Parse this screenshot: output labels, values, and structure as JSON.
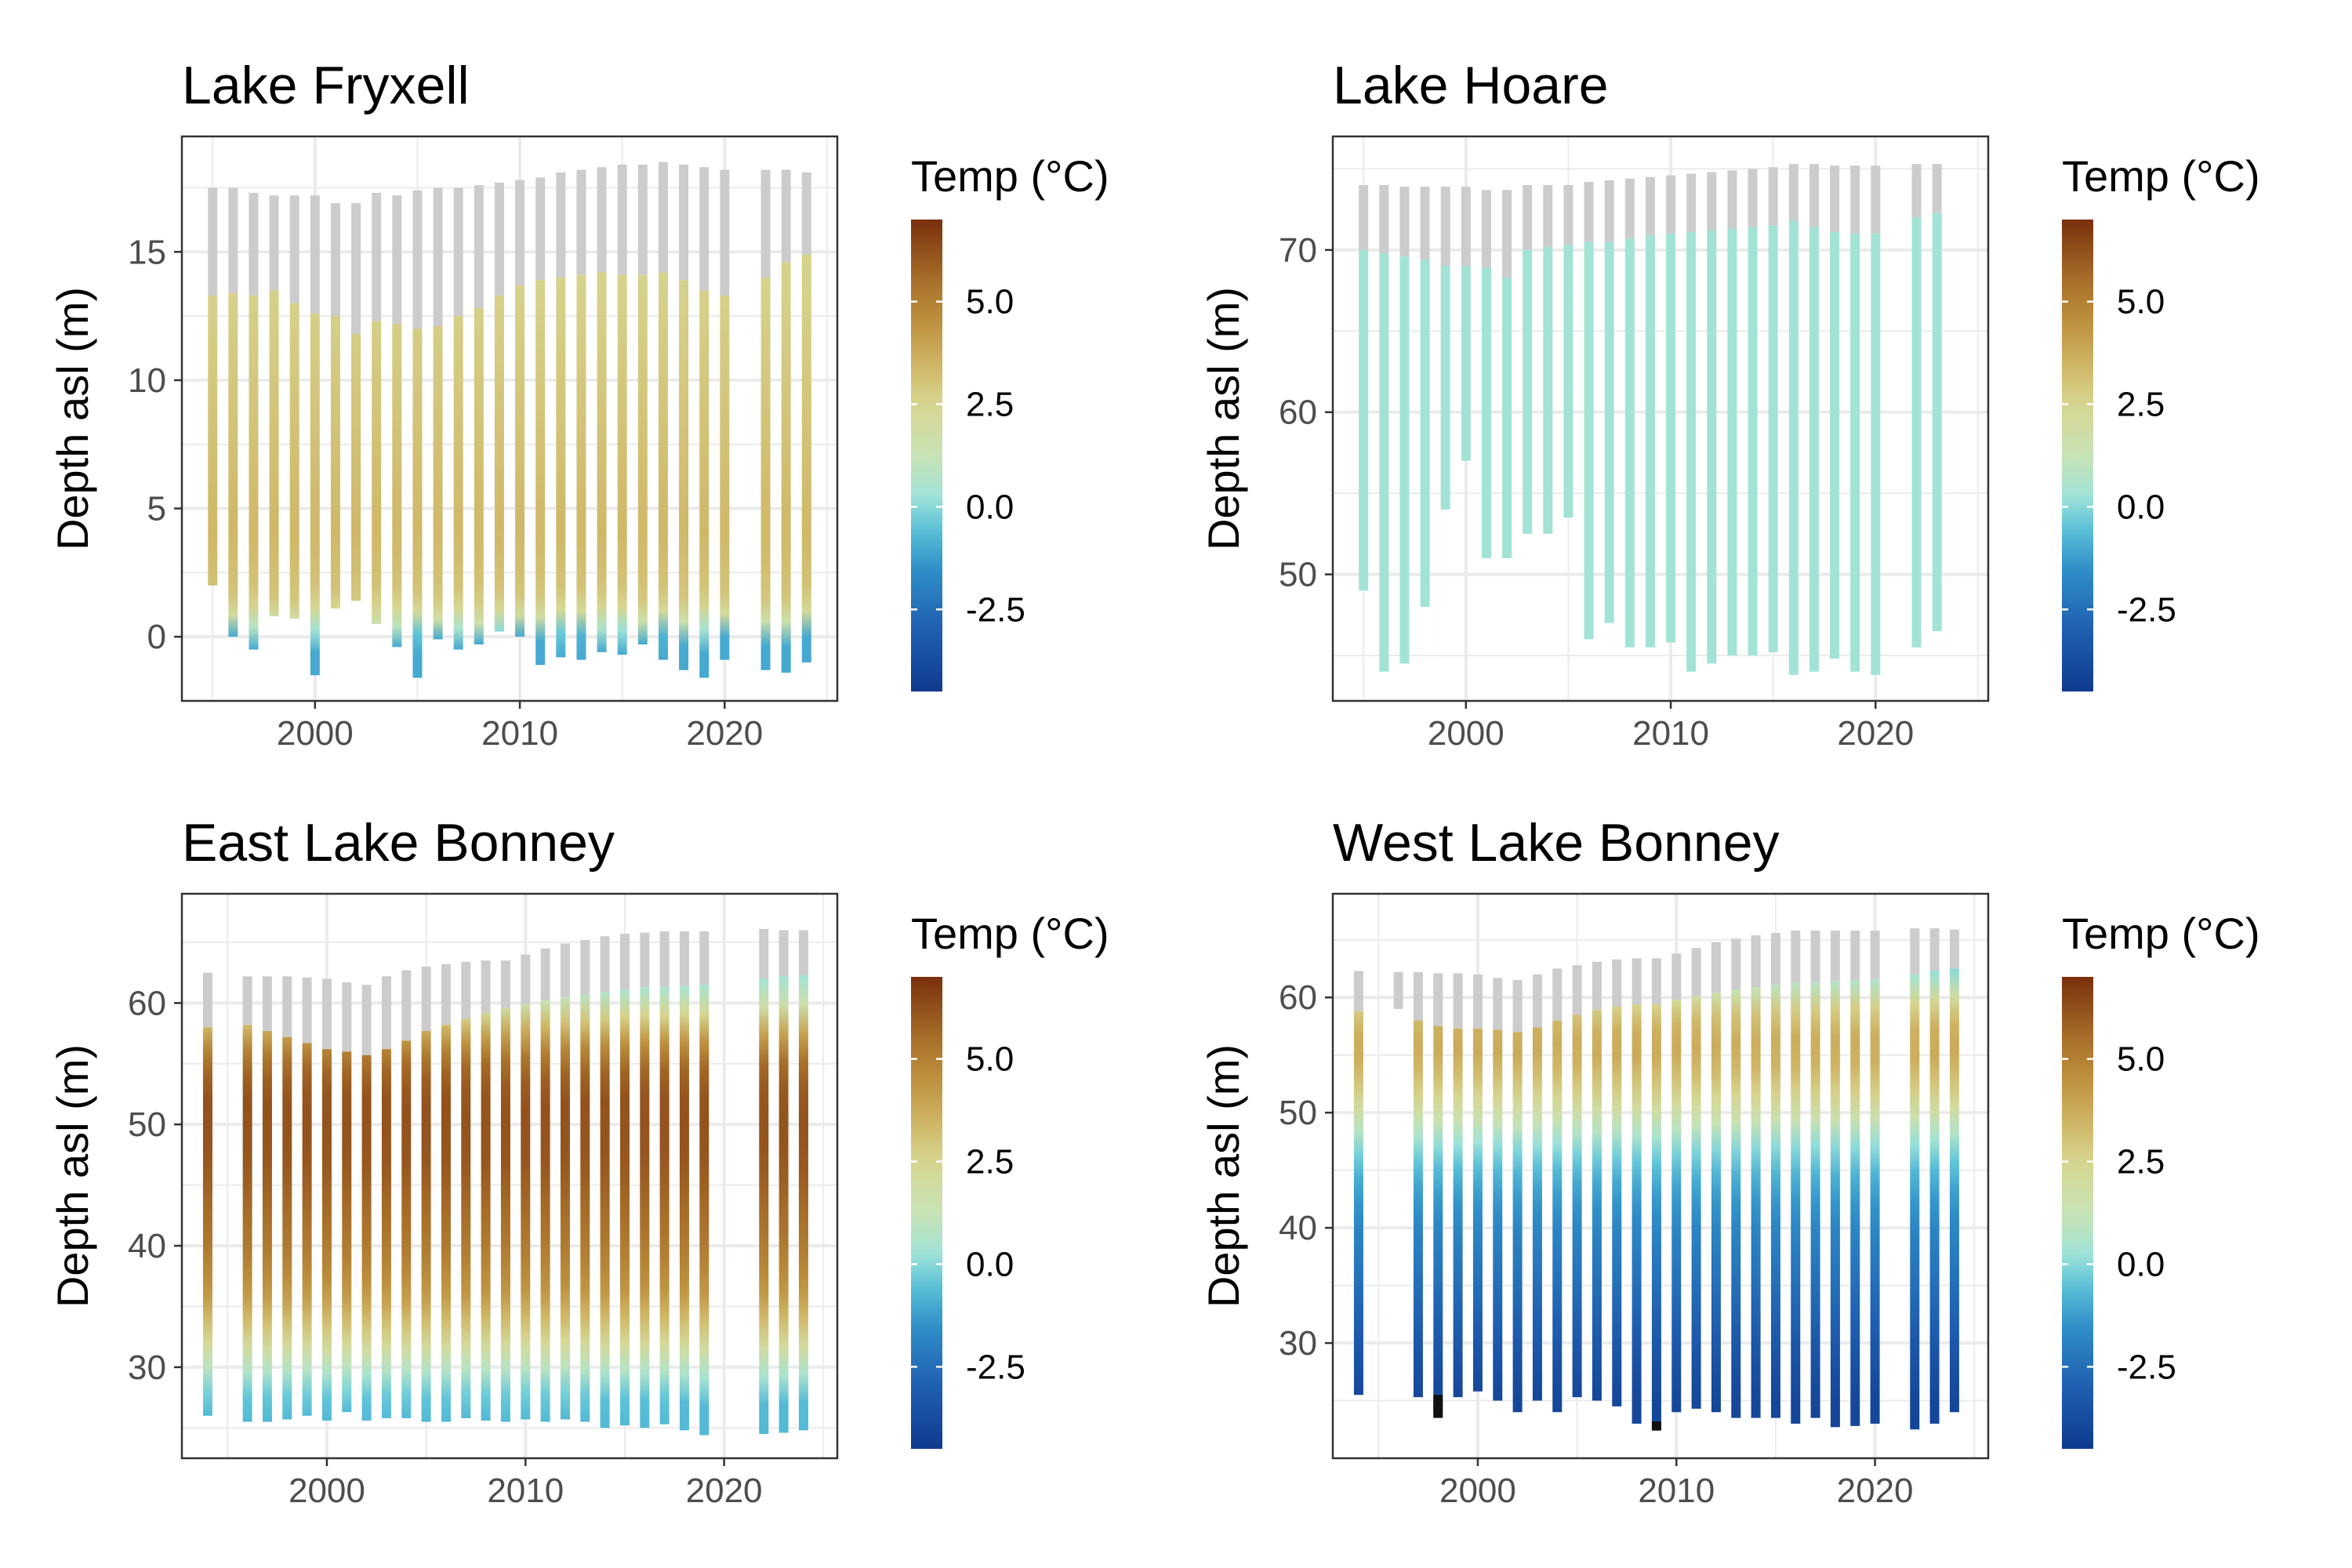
{
  "figure": {
    "legend_title": "Temp (°C)",
    "ylabel": "Depth asl (m)",
    "colorbar": {
      "min": -4.5,
      "max": 7,
      "ticks": [
        5.0,
        2.5,
        0.0,
        -2.5
      ],
      "tick_labels": [
        "5.0",
        "2.5",
        "0.0",
        "-2.5"
      ],
      "stops": [
        {
          "t": -4.5,
          "color": "#0f3a8e"
        },
        {
          "t": -3.0,
          "color": "#1f5fb0"
        },
        {
          "t": -1.5,
          "color": "#2f8fc8"
        },
        {
          "t": -0.5,
          "color": "#5cc3d8"
        },
        {
          "t": 0.2,
          "color": "#9ee3da"
        },
        {
          "t": 1.2,
          "color": "#c7e3b6"
        },
        {
          "t": 2.5,
          "color": "#d7d691"
        },
        {
          "t": 3.5,
          "color": "#cfb463"
        },
        {
          "t": 4.5,
          "color": "#bd913e"
        },
        {
          "t": 5.5,
          "color": "#a8702a"
        },
        {
          "t": 7.0,
          "color": "#7a2f0c"
        }
      ],
      "ice_color": "#cccccc",
      "below_range_color": "#111111"
    }
  },
  "chart_data": [
    {
      "type": "heatmap",
      "title": "Lake Fryxell",
      "xlim": [
        1993.5,
        2025.5
      ],
      "ylim": [
        -2.5,
        19.5
      ],
      "xticks": [
        2000,
        2010,
        2020
      ],
      "yticks": [
        0,
        5,
        10,
        15
      ],
      "series": [
        {
          "year": 1995,
          "top": 17.5,
          "ice_bottom": 13.3,
          "bottom": 2.0
        },
        {
          "year": 1996,
          "top": 17.5,
          "ice_bottom": 13.4,
          "bottom": 0.0
        },
        {
          "year": 1997,
          "top": 17.3,
          "ice_bottom": 13.3,
          "bottom": -0.5
        },
        {
          "year": 1998,
          "top": 17.2,
          "ice_bottom": 13.5,
          "bottom": 0.8
        },
        {
          "year": 1999,
          "top": 17.2,
          "ice_bottom": 13.0,
          "bottom": 0.7
        },
        {
          "year": 2000,
          "top": 17.2,
          "ice_bottom": 12.6,
          "bottom": -1.5
        },
        {
          "year": 2001,
          "top": 16.9,
          "ice_bottom": 12.5,
          "bottom": 1.1
        },
        {
          "year": 2002,
          "top": 16.9,
          "ice_bottom": 11.8,
          "bottom": 1.4
        },
        {
          "year": 2003,
          "top": 17.3,
          "ice_bottom": 12.3,
          "bottom": 0.5
        },
        {
          "year": 2004,
          "top": 17.2,
          "ice_bottom": 12.2,
          "bottom": -0.4
        },
        {
          "year": 2005,
          "top": 17.4,
          "ice_bottom": 12.0,
          "bottom": -1.6
        },
        {
          "year": 2006,
          "top": 17.5,
          "ice_bottom": 12.1,
          "bottom": -0.1
        },
        {
          "year": 2007,
          "top": 17.5,
          "ice_bottom": 12.5,
          "bottom": -0.5
        },
        {
          "year": 2008,
          "top": 17.6,
          "ice_bottom": 12.8,
          "bottom": -0.3
        },
        {
          "year": 2009,
          "top": 17.7,
          "ice_bottom": 13.3,
          "bottom": 0.2
        },
        {
          "year": 2010,
          "top": 17.8,
          "ice_bottom": 13.7,
          "bottom": 0.0
        },
        {
          "year": 2011,
          "top": 17.9,
          "ice_bottom": 13.9,
          "bottom": -1.1
        },
        {
          "year": 2012,
          "top": 18.1,
          "ice_bottom": 14.0,
          "bottom": -0.8
        },
        {
          "year": 2013,
          "top": 18.2,
          "ice_bottom": 14.1,
          "bottom": -0.9
        },
        {
          "year": 2014,
          "top": 18.3,
          "ice_bottom": 14.2,
          "bottom": -0.6
        },
        {
          "year": 2015,
          "top": 18.4,
          "ice_bottom": 14.1,
          "bottom": -0.7
        },
        {
          "year": 2016,
          "top": 18.4,
          "ice_bottom": 14.1,
          "bottom": -0.3
        },
        {
          "year": 2017,
          "top": 18.5,
          "ice_bottom": 14.2,
          "bottom": -0.9
        },
        {
          "year": 2018,
          "top": 18.4,
          "ice_bottom": 13.9,
          "bottom": -1.3
        },
        {
          "year": 2019,
          "top": 18.3,
          "ice_bottom": 13.5,
          "bottom": -1.6
        },
        {
          "year": 2020,
          "top": 18.2,
          "ice_bottom": 13.3,
          "bottom": -0.9
        },
        {
          "year": 2022,
          "top": 18.2,
          "ice_bottom": 14.0,
          "bottom": -1.3
        },
        {
          "year": 2023,
          "top": 18.2,
          "ice_bottom": 14.6,
          "bottom": -1.4
        },
        {
          "year": 2024,
          "top": 18.1,
          "ice_bottom": 14.9,
          "bottom": -1.0
        }
      ],
      "profile": [
        {
          "d": 0.0,
          "t": -1.0
        },
        {
          "d": 0.5,
          "t": 1.5
        },
        {
          "d": 1.5,
          "t": 3.0
        },
        {
          "d": 4.0,
          "t": 3.4
        },
        {
          "d": 14.0,
          "t": 2.6
        },
        {
          "d": 100.0,
          "t": 2.6
        }
      ]
    },
    {
      "type": "heatmap",
      "title": "Lake Hoare",
      "xlim": [
        1993.5,
        2025.5
      ],
      "ylim": [
        42.2,
        77.0
      ],
      "xticks": [
        2000,
        2010,
        2020
      ],
      "yticks": [
        50,
        60,
        70
      ],
      "series": [
        {
          "year": 1995,
          "top": 74.0,
          "ice_bottom": 70.0,
          "bottom": 49.0
        },
        {
          "year": 1996,
          "top": 74.0,
          "ice_bottom": 69.8,
          "bottom": 44.0
        },
        {
          "year": 1997,
          "top": 73.9,
          "ice_bottom": 69.6,
          "bottom": 44.5
        },
        {
          "year": 1998,
          "top": 73.9,
          "ice_bottom": 69.4,
          "bottom": 48.0
        },
        {
          "year": 1999,
          "top": 73.9,
          "ice_bottom": 69.0,
          "bottom": 54.0
        },
        {
          "year": 2000,
          "top": 73.9,
          "ice_bottom": 69.0,
          "bottom": 57.0
        },
        {
          "year": 2001,
          "top": 73.7,
          "ice_bottom": 68.9,
          "bottom": 51.0
        },
        {
          "year": 2002,
          "top": 73.7,
          "ice_bottom": 68.3,
          "bottom": 51.0
        },
        {
          "year": 2003,
          "top": 74.0,
          "ice_bottom": 70.0,
          "bottom": 52.5
        },
        {
          "year": 2004,
          "top": 74.0,
          "ice_bottom": 70.2,
          "bottom": 52.5
        },
        {
          "year": 2005,
          "top": 74.0,
          "ice_bottom": 70.3,
          "bottom": 53.5
        },
        {
          "year": 2006,
          "top": 74.2,
          "ice_bottom": 70.5,
          "bottom": 46.0
        },
        {
          "year": 2007,
          "top": 74.3,
          "ice_bottom": 70.5,
          "bottom": 47.0
        },
        {
          "year": 2008,
          "top": 74.4,
          "ice_bottom": 70.7,
          "bottom": 45.5
        },
        {
          "year": 2009,
          "top": 74.5,
          "ice_bottom": 70.9,
          "bottom": 45.5
        },
        {
          "year": 2010,
          "top": 74.6,
          "ice_bottom": 71.0,
          "bottom": 45.8
        },
        {
          "year": 2011,
          "top": 74.7,
          "ice_bottom": 71.1,
          "bottom": 44.0
        },
        {
          "year": 2012,
          "top": 74.8,
          "ice_bottom": 71.2,
          "bottom": 44.5
        },
        {
          "year": 2013,
          "top": 74.9,
          "ice_bottom": 71.3,
          "bottom": 45.0
        },
        {
          "year": 2014,
          "top": 75.0,
          "ice_bottom": 71.4,
          "bottom": 45.0
        },
        {
          "year": 2015,
          "top": 75.1,
          "ice_bottom": 71.5,
          "bottom": 45.2
        },
        {
          "year": 2016,
          "top": 75.3,
          "ice_bottom": 71.8,
          "bottom": 43.8
        },
        {
          "year": 2017,
          "top": 75.3,
          "ice_bottom": 71.4,
          "bottom": 44.0
        },
        {
          "year": 2018,
          "top": 75.2,
          "ice_bottom": 71.1,
          "bottom": 44.8
        },
        {
          "year": 2019,
          "top": 75.2,
          "ice_bottom": 71.0,
          "bottom": 44.0
        },
        {
          "year": 2020,
          "top": 75.2,
          "ice_bottom": 71.0,
          "bottom": 43.8
        },
        {
          "year": 2022,
          "top": 75.3,
          "ice_bottom": 72.0,
          "bottom": 45.5
        },
        {
          "year": 2023,
          "top": 75.3,
          "ice_bottom": 72.3,
          "bottom": 46.5
        }
      ],
      "profile": [
        {
          "d": 0.0,
          "t": 0.3
        },
        {
          "d": 100.0,
          "t": 0.3
        }
      ]
    },
    {
      "type": "heatmap",
      "title": "East Lake Bonney",
      "xlim": [
        1992.7,
        2025.7
      ],
      "ylim": [
        22.5,
        69.0
      ],
      "xticks": [
        2000,
        2010,
        2020
      ],
      "yticks": [
        30,
        40,
        50,
        60
      ],
      "series": [
        {
          "year": 1994,
          "top": 62.5,
          "ice_bottom": 58.0,
          "bottom": 26.0
        },
        {
          "year": 1996,
          "top": 62.2,
          "ice_bottom": 58.2,
          "bottom": 25.5
        },
        {
          "year": 1997,
          "top": 62.2,
          "ice_bottom": 57.7,
          "bottom": 25.5
        },
        {
          "year": 1998,
          "top": 62.2,
          "ice_bottom": 57.2,
          "bottom": 25.7
        },
        {
          "year": 1999,
          "top": 62.1,
          "ice_bottom": 56.7,
          "bottom": 26.0
        },
        {
          "year": 2000,
          "top": 62.0,
          "ice_bottom": 56.2,
          "bottom": 25.6
        },
        {
          "year": 2001,
          "top": 61.7,
          "ice_bottom": 56.0,
          "bottom": 26.3
        },
        {
          "year": 2002,
          "top": 61.5,
          "ice_bottom": 55.7,
          "bottom": 25.6
        },
        {
          "year": 2003,
          "top": 62.2,
          "ice_bottom": 56.2,
          "bottom": 25.8
        },
        {
          "year": 2004,
          "top": 62.7,
          "ice_bottom": 56.9,
          "bottom": 25.8
        },
        {
          "year": 2005,
          "top": 63.0,
          "ice_bottom": 57.7,
          "bottom": 25.5
        },
        {
          "year": 2006,
          "top": 63.2,
          "ice_bottom": 58.2,
          "bottom": 25.5
        },
        {
          "year": 2007,
          "top": 63.4,
          "ice_bottom": 58.7,
          "bottom": 25.8
        },
        {
          "year": 2008,
          "top": 63.5,
          "ice_bottom": 59.2,
          "bottom": 25.6
        },
        {
          "year": 2009,
          "top": 63.5,
          "ice_bottom": 59.6,
          "bottom": 25.5
        },
        {
          "year": 2010,
          "top": 64.0,
          "ice_bottom": 59.9,
          "bottom": 25.7
        },
        {
          "year": 2011,
          "top": 64.5,
          "ice_bottom": 60.2,
          "bottom": 25.5
        },
        {
          "year": 2012,
          "top": 64.9,
          "ice_bottom": 60.5,
          "bottom": 25.7
        },
        {
          "year": 2013,
          "top": 65.2,
          "ice_bottom": 60.7,
          "bottom": 25.5
        },
        {
          "year": 2014,
          "top": 65.5,
          "ice_bottom": 60.9,
          "bottom": 25.0
        },
        {
          "year": 2015,
          "top": 65.7,
          "ice_bottom": 61.1,
          "bottom": 25.2
        },
        {
          "year": 2016,
          "top": 65.8,
          "ice_bottom": 61.3,
          "bottom": 25.0
        },
        {
          "year": 2017,
          "top": 65.9,
          "ice_bottom": 61.3,
          "bottom": 25.3
        },
        {
          "year": 2018,
          "top": 65.9,
          "ice_bottom": 61.4,
          "bottom": 24.8
        },
        {
          "year": 2019,
          "top": 65.9,
          "ice_bottom": 61.5,
          "bottom": 24.4
        },
        {
          "year": 2022,
          "top": 66.1,
          "ice_bottom": 62.0,
          "bottom": 24.5
        },
        {
          "year": 2023,
          "top": 66.0,
          "ice_bottom": 62.2,
          "bottom": 24.6
        },
        {
          "year": 2024,
          "top": 66.0,
          "ice_bottom": 62.3,
          "bottom": 24.8
        }
      ],
      "profile": [
        {
          "d": 0.0,
          "t": -0.7
        },
        {
          "d": 27.0,
          "t": -0.7
        },
        {
          "d": 29.5,
          "t": 0.6
        },
        {
          "d": 32.5,
          "t": 2.6
        },
        {
          "d": 36.0,
          "t": 4.3
        },
        {
          "d": 40.0,
          "t": 5.2
        },
        {
          "d": 47.0,
          "t": 6.1
        },
        {
          "d": 52.0,
          "t": 6.2
        },
        {
          "d": 55.0,
          "t": 5.6
        },
        {
          "d": 57.5,
          "t": 4.0
        },
        {
          "d": 59.5,
          "t": 2.0
        },
        {
          "d": 61.0,
          "t": 0.6
        },
        {
          "d": 63.0,
          "t": 0.1
        },
        {
          "d": 100.0,
          "t": 0.1
        }
      ]
    },
    {
      "type": "heatmap",
      "title": "West Lake Bonney",
      "xlim": [
        1992.7,
        2025.7
      ],
      "ylim": [
        20.0,
        69.0
      ],
      "xticks": [
        2000,
        2010,
        2020
      ],
      "yticks": [
        30,
        40,
        50,
        60
      ],
      "series": [
        {
          "year": 1994,
          "top": 62.3,
          "ice_bottom": 58.8,
          "bottom": 25.5
        },
        {
          "year": 1996,
          "top": 62.2,
          "ice_bottom": 59.0,
          "bottom": 59.0
        },
        {
          "year": 1997,
          "top": 62.2,
          "ice_bottom": 58.0,
          "bottom": 25.3
        },
        {
          "year": 1998,
          "top": 62.1,
          "ice_bottom": 57.5,
          "bottom": 24.0
        },
        {
          "year": 1999,
          "top": 62.1,
          "ice_bottom": 57.3,
          "bottom": 25.3
        },
        {
          "year": 2000,
          "top": 62.0,
          "ice_bottom": 57.3,
          "bottom": 25.8
        },
        {
          "year": 2001,
          "top": 61.7,
          "ice_bottom": 57.2,
          "bottom": 25.0
        },
        {
          "year": 2002,
          "top": 61.5,
          "ice_bottom": 57.0,
          "bottom": 24.0
        },
        {
          "year": 2003,
          "top": 62.0,
          "ice_bottom": 57.4,
          "bottom": 25.0
        },
        {
          "year": 2004,
          "top": 62.5,
          "ice_bottom": 58.0,
          "bottom": 24.0
        },
        {
          "year": 2005,
          "top": 62.8,
          "ice_bottom": 58.5,
          "bottom": 25.3
        },
        {
          "year": 2006,
          "top": 63.1,
          "ice_bottom": 58.9,
          "bottom": 25.0
        },
        {
          "year": 2007,
          "top": 63.3,
          "ice_bottom": 59.2,
          "bottom": 24.5
        },
        {
          "year": 2008,
          "top": 63.4,
          "ice_bottom": 59.4,
          "bottom": 23.0
        },
        {
          "year": 2009,
          "top": 63.4,
          "ice_bottom": 59.4,
          "bottom": 22.5
        },
        {
          "year": 2010,
          "top": 63.8,
          "ice_bottom": 59.8,
          "bottom": 24.0
        },
        {
          "year": 2011,
          "top": 64.3,
          "ice_bottom": 60.1,
          "bottom": 24.3
        },
        {
          "year": 2012,
          "top": 64.8,
          "ice_bottom": 60.4,
          "bottom": 24.0
        },
        {
          "year": 2013,
          "top": 65.1,
          "ice_bottom": 60.7,
          "bottom": 23.5
        },
        {
          "year": 2014,
          "top": 65.4,
          "ice_bottom": 60.9,
          "bottom": 23.5
        },
        {
          "year": 2015,
          "top": 65.6,
          "ice_bottom": 61.1,
          "bottom": 23.5
        },
        {
          "year": 2016,
          "top": 65.8,
          "ice_bottom": 61.3,
          "bottom": 23.0
        },
        {
          "year": 2017,
          "top": 65.8,
          "ice_bottom": 61.3,
          "bottom": 23.5
        },
        {
          "year": 2018,
          "top": 65.8,
          "ice_bottom": 61.4,
          "bottom": 22.7
        },
        {
          "year": 2019,
          "top": 65.8,
          "ice_bottom": 61.5,
          "bottom": 22.8
        },
        {
          "year": 2020,
          "top": 65.8,
          "ice_bottom": 61.6,
          "bottom": 23.0
        },
        {
          "year": 2022,
          "top": 66.0,
          "ice_bottom": 62.0,
          "bottom": 22.5
        },
        {
          "year": 2023,
          "top": 66.0,
          "ice_bottom": 62.3,
          "bottom": 23.0
        },
        {
          "year": 2024,
          "top": 65.9,
          "ice_bottom": 62.5,
          "bottom": 24.0
        }
      ],
      "below_range": [
        {
          "year": 1998,
          "from": 23.5,
          "to": 25.5
        },
        {
          "year": 2009,
          "from": 22.4,
          "to": 23.2
        }
      ],
      "profile": [
        {
          "d": 0.0,
          "t": -4.4
        },
        {
          "d": 25.0,
          "t": -4.0
        },
        {
          "d": 30.0,
          "t": -3.3
        },
        {
          "d": 35.0,
          "t": -2.5
        },
        {
          "d": 40.0,
          "t": -1.8
        },
        {
          "d": 44.0,
          "t": -1.0
        },
        {
          "d": 47.0,
          "t": 0.0
        },
        {
          "d": 49.0,
          "t": 1.2
        },
        {
          "d": 52.0,
          "t": 2.8
        },
        {
          "d": 55.0,
          "t": 3.8
        },
        {
          "d": 57.5,
          "t": 3.6
        },
        {
          "d": 59.5,
          "t": 2.5
        },
        {
          "d": 61.0,
          "t": 1.0
        },
        {
          "d": 62.5,
          "t": 0.0
        },
        {
          "d": 100.0,
          "t": -0.2
        }
      ]
    }
  ]
}
